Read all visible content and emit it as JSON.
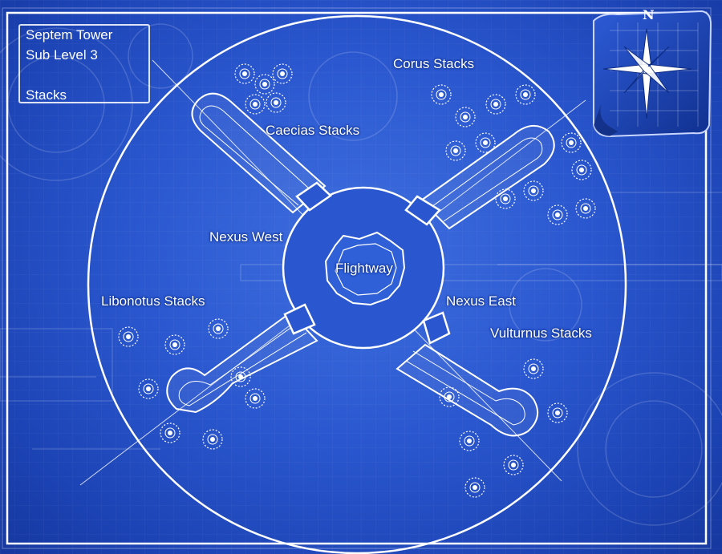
{
  "legend": {
    "line1": "Septem Tower",
    "line2": "Sub Level 3",
    "line3": "Stacks"
  },
  "compass": {
    "north_label": "N"
  },
  "areas": {
    "corus": "Corus Stacks",
    "caecias": "Caecias Stacks",
    "nexus_west": "Nexus West",
    "flightway": "Flightway",
    "libonotus": "Libonotus Stacks",
    "nexus_east": "Nexus East",
    "vulturnus": "Vulturnus Stacks"
  },
  "colors": {
    "background": "#2a57cf",
    "line": "#ffffff",
    "compass_tile": "#1d47b6"
  }
}
